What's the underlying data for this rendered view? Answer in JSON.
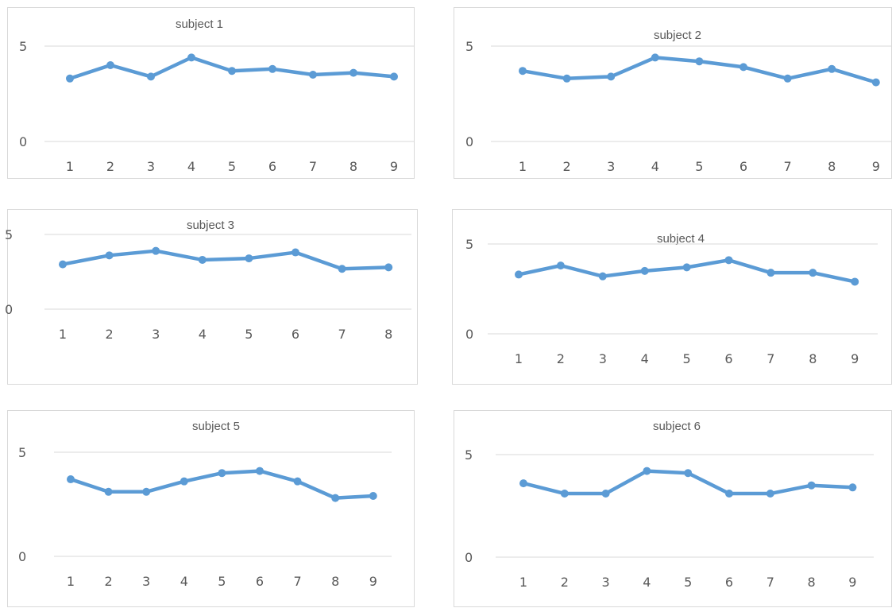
{
  "palette": {
    "line": "#5b9bd5",
    "grid": "#d9d9d9",
    "text": "#595959",
    "border": "#d9d9d9"
  },
  "chart_data": [
    {
      "type": "line",
      "title": "subject 1",
      "categories": [
        "1",
        "2",
        "3",
        "4",
        "5",
        "6",
        "7",
        "8",
        "9"
      ],
      "values": [
        3.3,
        4.0,
        3.4,
        4.4,
        3.7,
        3.8,
        3.5,
        3.6,
        3.4
      ],
      "ylim": [
        0,
        5
      ],
      "yticks": [
        "0",
        "5"
      ],
      "grid": true,
      "legend": "none"
    },
    {
      "type": "line",
      "title": "subject  2",
      "categories": [
        "1",
        "2",
        "3",
        "4",
        "5",
        "6",
        "7",
        "8",
        "9"
      ],
      "values": [
        3.7,
        3.3,
        3.4,
        4.4,
        4.2,
        3.9,
        3.3,
        3.8,
        3.1
      ],
      "ylim": [
        0,
        5
      ],
      "yticks": [
        "0",
        "5"
      ],
      "grid": true,
      "legend": "none"
    },
    {
      "type": "line",
      "title": "subject  3",
      "categories": [
        "1",
        "2",
        "3",
        "4",
        "5",
        "6",
        "7",
        "8"
      ],
      "values": [
        3.0,
        3.6,
        3.9,
        3.3,
        3.4,
        3.8,
        2.7,
        2.8
      ],
      "ylim": [
        0,
        5
      ],
      "yticks": [
        "0",
        "5"
      ],
      "grid": true,
      "legend": "none"
    },
    {
      "type": "line",
      "title": "subject  4",
      "categories": [
        "1",
        "2",
        "3",
        "4",
        "5",
        "6",
        "7",
        "8",
        "9"
      ],
      "values": [
        3.3,
        3.8,
        3.2,
        3.5,
        3.7,
        4.1,
        3.4,
        3.4,
        2.9
      ],
      "ylim": [
        0,
        5
      ],
      "yticks": [
        "0",
        "5"
      ],
      "grid": true,
      "legend": "none"
    },
    {
      "type": "line",
      "title": "subject  5",
      "categories": [
        "1",
        "2",
        "3",
        "4",
        "5",
        "6",
        "7",
        "8",
        "9"
      ],
      "values": [
        3.7,
        3.1,
        3.1,
        3.6,
        4.0,
        4.1,
        3.6,
        2.8,
        2.9
      ],
      "ylim": [
        0,
        5
      ],
      "yticks": [
        "0",
        "5"
      ],
      "grid": true,
      "legend": "none"
    },
    {
      "type": "line",
      "title": "subject  6",
      "categories": [
        "1",
        "2",
        "3",
        "4",
        "5",
        "6",
        "7",
        "8",
        "9"
      ],
      "values": [
        3.6,
        3.1,
        3.1,
        4.2,
        4.1,
        3.1,
        3.1,
        3.5,
        3.4
      ],
      "ylim": [
        0,
        5
      ],
      "yticks": [
        "0",
        "5"
      ],
      "grid": true,
      "legend": "none"
    }
  ]
}
